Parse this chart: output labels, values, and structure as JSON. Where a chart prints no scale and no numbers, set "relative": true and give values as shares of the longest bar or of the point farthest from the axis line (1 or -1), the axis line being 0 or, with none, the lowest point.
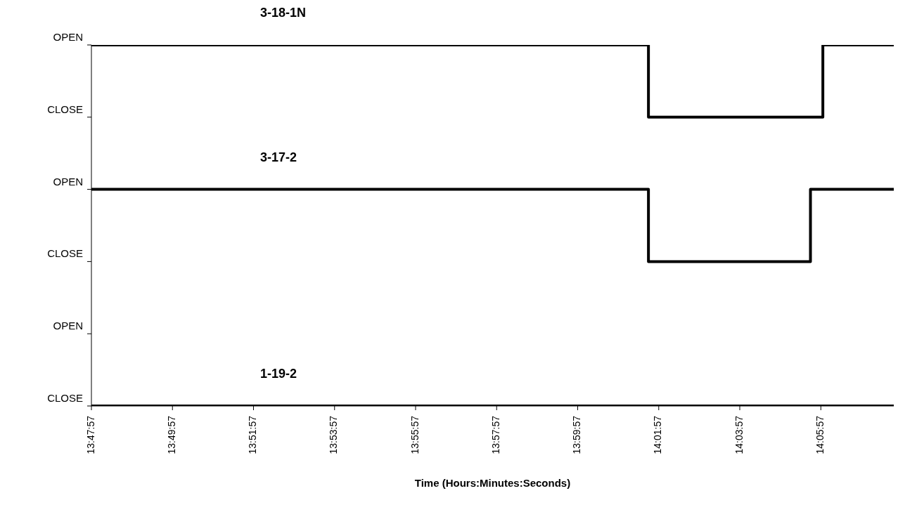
{
  "chart_data": {
    "type": "step",
    "xlabel": "Time (Hours:Minutes:Seconds)",
    "relative": true,
    "series": [
      {
        "name": "3-18-1N",
        "color": "#000000",
        "x": [
          13.79917,
          14.02827,
          14.1,
          14.12917
        ],
        "values": [
          1,
          0.8,
          1,
          1
        ]
      },
      {
        "name": "3-17-2",
        "color": "#000000",
        "x": [
          13.79917,
          14.02827,
          14.0949,
          14.12917
        ],
        "values": [
          0.6,
          0.4,
          0.6,
          0.6
        ]
      },
      {
        "name": "1-19-2",
        "color": "#000000",
        "x": [
          13.79917,
          14.12917
        ],
        "values": [
          0,
          0
        ]
      }
    ],
    "xlim": [
      13.79917,
      14.12917
    ],
    "xticks": [
      {
        "value": 13.79917,
        "label": "13:47:57"
      },
      {
        "value": 13.8325,
        "label": "13:49:57"
      },
      {
        "value": 13.86583,
        "label": "13:51:57"
      },
      {
        "value": 13.89917,
        "label": "13:53:57"
      },
      {
        "value": 13.9325,
        "label": "13:55:57"
      },
      {
        "value": 13.96583,
        "label": "13:57:57"
      },
      {
        "value": 13.99917,
        "label": "13:59:57"
      },
      {
        "value": 14.0325,
        "label": "14:01:57"
      },
      {
        "value": 14.06583,
        "label": "14:03:57"
      },
      {
        "value": 14.09917,
        "label": "14:05:57"
      }
    ],
    "annotations": [
      "CLOSE",
      "OPEN",
      "CLOSE",
      "OPEN",
      "CLOSE",
      "OPEN"
    ],
    "marker": "none",
    "line_style": "solid"
  }
}
